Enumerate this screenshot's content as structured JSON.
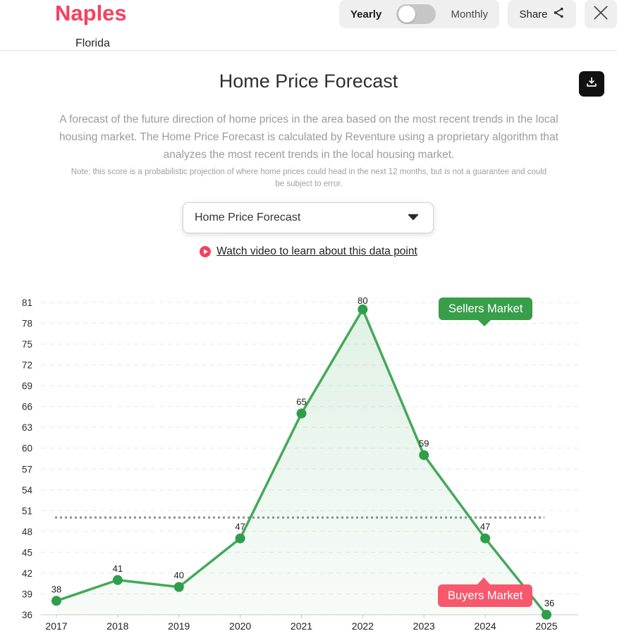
{
  "header": {
    "city": "Naples",
    "state": "Florida",
    "toggle": {
      "left_label": "Yearly",
      "right_label": "Monthly",
      "selected": "Yearly"
    },
    "share_label": "Share"
  },
  "main": {
    "title": "Home Price Forecast",
    "description": "A forecast of the future direction of home prices in the area based on the most recent trends in the local housing market. The Home Price Forecast is calculated by Reventure using a proprietary algorithm that analyzes the most recent trends in the local housing market.",
    "note": "Note: this score is a probabilistic projection of where home prices could head in the next 12 months, but is not a guarantee and could be subject to error.",
    "dropdown_value": "Home Price Forecast",
    "video_link_label": "Watch video to learn about this data point"
  },
  "chart_data": {
    "type": "line",
    "x": [
      "2017",
      "2018",
      "2019",
      "2020",
      "2021",
      "2022",
      "2023",
      "2024",
      "2025"
    ],
    "values": [
      38,
      41,
      40,
      47,
      65,
      80,
      59,
      47,
      36
    ],
    "ylim": [
      36,
      81
    ],
    "ytick_step": 3,
    "threshold_value": 50,
    "grid": true,
    "annotations": [
      {
        "label": "Sellers Market"
      },
      {
        "label": "Buyers Market"
      }
    ]
  },
  "icons": {
    "share": "share-icon",
    "close": "close-icon",
    "download": "download-icon",
    "play": "play-icon",
    "chevron": "chevron-down-icon"
  },
  "colors": {
    "accent_pink": "#f4415f",
    "badge_pink": "#f7586d",
    "badge_green": "#389e4a",
    "line_green": "#44a95a",
    "point_green": "#2f9e4a",
    "threshold_gray": "#8e8e8e",
    "grid_gray": "#e7e7e7"
  }
}
